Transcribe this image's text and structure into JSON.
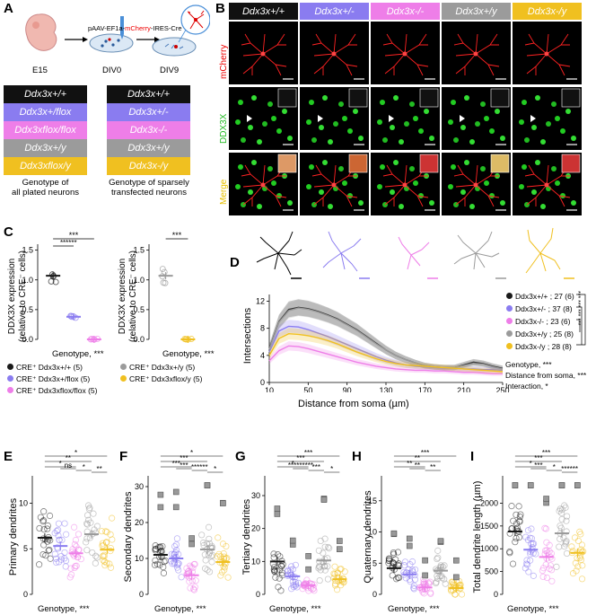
{
  "panel_labels": {
    "A": "A",
    "B": "B",
    "C": "C",
    "D": "D",
    "E": "E",
    "F": "F",
    "G": "G",
    "H": "H",
    "I": "I"
  },
  "colors": {
    "wt": "#1a1a1a",
    "het": "#8a7cf0",
    "ko": "#ee7ee8",
    "wty": "#9b9b9b",
    "koy": "#f0c020"
  },
  "panelA": {
    "e15": "E15",
    "div0": "DIV0",
    "div9": "DIV9",
    "plasmid_prefix": "pAAV-EF1a-",
    "plasmid_mcherry": "mCherry",
    "plasmid_suffix": "-IRES-Cre",
    "left_genotypes": [
      "Ddx3x+/+",
      "Ddx3x+/flox",
      "Ddx3xflox/flox",
      "Ddx3x+/y",
      "Ddx3xflox/y"
    ],
    "right_genotypes": [
      "Ddx3x+/+",
      "Ddx3x+/-",
      "Ddx3x-/-",
      "Ddx3x+/y",
      "Ddx3x-/y"
    ],
    "left_caption_1": "Genotype of",
    "left_caption_2": "all plated neurons",
    "right_caption_1": "Genotype of sparsely",
    "right_caption_2": "transfected neurons"
  },
  "panelB": {
    "headers": [
      "Ddx3x+/+",
      "Ddx3x+/-",
      "Ddx3x-/-",
      "Ddx3x+/y",
      "Ddx3x-/y"
    ],
    "rows": [
      "mCherry",
      "DDX3X",
      "Merge"
    ]
  },
  "panelC": {
    "ylabel_1": "DDX3X expression",
    "ylabel_2": "(relative to CRE⁻ cells)",
    "yticks": [
      "0.0",
      "0.5",
      "1.0",
      "1.5"
    ],
    "xcap": "Genotype, ***",
    "sig_left": [
      "***",
      "******"
    ],
    "sig_right": [
      "***"
    ],
    "legend": [
      {
        "text": "CRE⁺ Ddx3x+/+ (5)",
        "color": "wt"
      },
      {
        "text": "CRE⁺ Ddx3x+/flox (5)",
        "color": "het"
      },
      {
        "text": "CRE⁺ Ddx3xflox/flox (5)",
        "color": "ko"
      },
      {
        "text": "CRE⁺ Ddx3x+/y (5)",
        "color": "wty"
      },
      {
        "text": "CRE⁺ Ddx3xflox/y (5)",
        "color": "koy"
      }
    ]
  },
  "chart_data": [
    {
      "type": "scatter",
      "title": "C left",
      "ylabel": "DDX3X expression (relative to CRE- cells)",
      "ylim": [
        0,
        1.6
      ],
      "categories": [
        "Ddx3x+/+",
        "Ddx3x+/flox",
        "Ddx3xflox/flox"
      ],
      "means": [
        1.07,
        0.38,
        0.0
      ]
    },
    {
      "type": "scatter",
      "title": "C right",
      "ylabel": "DDX3X expression (relative to CRE- cells)",
      "ylim": [
        0,
        1.6
      ],
      "categories": [
        "Ddx3x+/y",
        "Ddx3xflox/y"
      ],
      "means": [
        1.07,
        0.0
      ]
    },
    {
      "type": "line",
      "title": "D",
      "xlabel": "Distance from soma (µm)",
      "ylabel": "Intersections",
      "x": [
        10,
        20,
        30,
        40,
        50,
        60,
        70,
        80,
        90,
        100,
        110,
        120,
        130,
        140,
        150,
        160,
        170,
        180,
        190,
        200,
        210,
        220,
        230,
        240,
        250
      ],
      "xticks": [
        10,
        50,
        90,
        130,
        170,
        210,
        250
      ],
      "yticks": [
        0,
        4,
        8,
        12
      ],
      "ylim": [
        0,
        13
      ],
      "series": [
        {
          "name": "Ddx3x+/+ ; 27 (6)",
          "color": "wt",
          "values": [
            5,
            9,
            10.8,
            11.1,
            10.9,
            10.5,
            10,
            9.4,
            8.6,
            7.8,
            6.8,
            5.8,
            4.8,
            4,
            3.4,
            2.9,
            2.5,
            2.3,
            2.2,
            2.2,
            2.6,
            3,
            2.8,
            2.4,
            2.1
          ]
        },
        {
          "name": "Ddx3x+/- ; 37 (8)",
          "color": "het",
          "values": [
            4.5,
            7.6,
            8.3,
            8.2,
            7.8,
            7.3,
            6.8,
            6.2,
            5.6,
            5,
            4.4,
            3.8,
            3.3,
            2.9,
            2.6,
            2.4,
            2.3,
            2.2,
            2.1,
            2.1,
            2,
            2,
            1.9,
            1.9,
            1.8
          ]
        },
        {
          "name": "Ddx3x-/- ; 23 (6)",
          "color": "ko",
          "values": [
            3.2,
            4.7,
            5.4,
            5.3,
            5,
            4.6,
            4.2,
            3.8,
            3.4,
            3,
            2.7,
            2.4,
            2.2,
            2,
            1.9,
            1.8,
            1.8,
            1.7,
            1.7,
            1.6,
            1.5,
            1.5,
            1.4,
            1.3,
            1.3
          ]
        },
        {
          "name": "Ddx3x+/y ; 25 (8)",
          "color": "wty",
          "values": [
            4.9,
            8.9,
            10.6,
            11,
            10.8,
            10.4,
            9.9,
            9.3,
            8.5,
            7.7,
            6.7,
            5.7,
            4.8,
            4,
            3.4,
            2.9,
            2.5,
            2.3,
            2.2,
            2.2,
            2.5,
            2.8,
            2.7,
            2.3,
            2
          ]
        },
        {
          "name": "Ddx3x-/y ; 28 (8)",
          "color": "koy",
          "values": [
            4,
            6.5,
            7.2,
            7.1,
            6.9,
            6.6,
            6.2,
            5.7,
            5.1,
            4.5,
            4,
            3.5,
            3.1,
            2.8,
            2.6,
            2.5,
            2.4,
            2.3,
            2.2,
            2.1,
            2,
            1.9,
            1.8,
            1.7,
            1.6
          ]
        }
      ],
      "stats": [
        "Genotype, ***",
        "Distance from soma, ***",
        "Interaction, *"
      ]
    },
    {
      "type": "scatter",
      "title": "E",
      "ylabel": "Primary dendrites",
      "yticks": [
        0,
        5,
        10
      ],
      "ylim": [
        0,
        13
      ],
      "means": [
        6.2,
        5.3,
        4.5,
        6.6,
        4.9
      ]
    },
    {
      "type": "scatter",
      "title": "F",
      "ylabel": "Secondary dendrites",
      "yticks": [
        0,
        10,
        20,
        30
      ],
      "ylim": [
        0,
        33
      ],
      "means": [
        11,
        10,
        5.3,
        12.5,
        9
      ]
    },
    {
      "type": "scatter",
      "title": "G",
      "ylabel": "Tertiary dendrites",
      "yticks": [
        0,
        10,
        20,
        30
      ],
      "ylim": [
        0,
        36
      ],
      "means": [
        10,
        5.5,
        2.8,
        10.3,
        4.6
      ]
    },
    {
      "type": "scatter",
      "title": "H",
      "ylabel": "Quaternary dendrites",
      "yticks": [
        0,
        5,
        10,
        15
      ],
      "ylim": [
        0,
        19
      ],
      "means": [
        4.2,
        3.2,
        1.1,
        3.8,
        1.0
      ]
    },
    {
      "type": "scatter",
      "title": "I",
      "ylabel": "Total dendrite length (µm)",
      "yticks": [
        0,
        500,
        1000,
        1500,
        2000
      ],
      "ylim": [
        0,
        2600
      ],
      "means": [
        1380,
        980,
        820,
        1340,
        910
      ]
    }
  ],
  "panelD": {
    "ylabel": "Intersections",
    "xlabel": "Distance from soma (µm)",
    "xticks": [
      "10",
      "50",
      "90",
      "130",
      "170",
      "210",
      "250"
    ],
    "yticks": [
      "0",
      "4",
      "8",
      "12"
    ],
    "legend": [
      "Ddx3x+/+ ; 27 (6)",
      "Ddx3x+/- ; 37 (8)",
      "Ddx3x-/- ; 23 (6)",
      "Ddx3x+/y ; 25 (8)",
      "Ddx3x-/y ; 28 (8)"
    ],
    "stats": [
      "Genotype, ***",
      "Distance from soma, ***",
      "Interaction, *"
    ],
    "sig": "*** *** *** ***"
  },
  "bottom": {
    "E": {
      "ylabel": "Primary dendrites",
      "yticks": [
        "0",
        "5",
        "10"
      ],
      "xcap": "Genotype, ***",
      "sig": [
        "*",
        "**",
        "*",
        "ns",
        "*",
        "**"
      ]
    },
    "F": {
      "ylabel": "Secondary dendrites",
      "yticks": [
        "0",
        "10",
        "20",
        "30"
      ],
      "xcap": "Genotype, ***",
      "sig": [
        "*",
        "***",
        "***",
        "***",
        "******",
        "*"
      ]
    },
    "G": {
      "ylabel": "Tertiary dendrites",
      "yticks": [
        "0",
        "10",
        "20",
        "30"
      ],
      "xcap": "Genotype, ***",
      "sig": [
        "***",
        "***",
        "*",
        "*********",
        "***",
        "*"
      ]
    },
    "H": {
      "ylabel": "Quaternary dendrites",
      "yticks": [
        "0",
        "5",
        "10",
        "15"
      ],
      "xcap": "Genotype, ***",
      "sig": [
        "***",
        "**",
        "**",
        "**",
        "**"
      ]
    },
    "I": {
      "ylabel": "Total dendrite length (µm)",
      "yticks": [
        "0",
        "500",
        "1000",
        "1500",
        "2000"
      ],
      "xcap": "Genotype, ***",
      "sig": [
        "***",
        "***",
        "*",
        "***",
        "*",
        "******"
      ]
    }
  }
}
